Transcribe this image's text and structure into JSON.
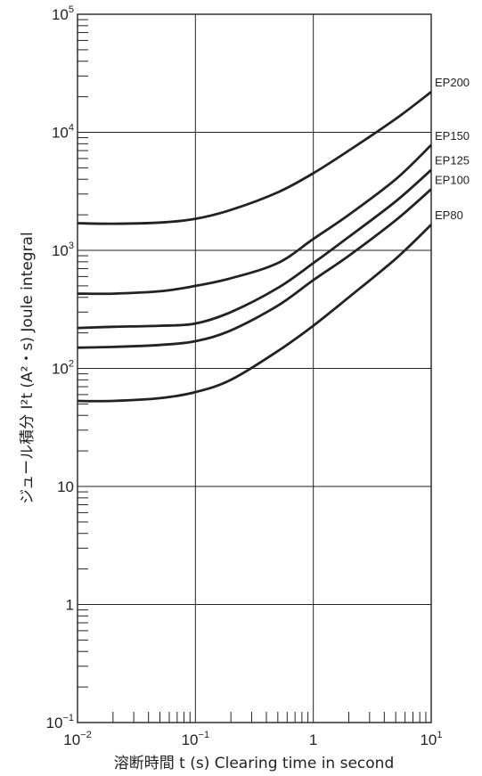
{
  "chart_data": {
    "type": "line",
    "x_scale": "log",
    "y_scale": "log",
    "xlim": [
      0.01,
      10
    ],
    "ylim": [
      0.1,
      100000
    ],
    "grid": "major decades",
    "xlabel": "溶断時間 t (s)  Clearing time in second",
    "ylabel": "ジュール積分 I²t (A²・s)  Joule integral",
    "x_ticks": [
      {
        "value": 0.01,
        "base": "10",
        "exp": "−2"
      },
      {
        "value": 0.1,
        "base": "10",
        "exp": "−1"
      },
      {
        "value": 1,
        "base": "1",
        "exp": ""
      },
      {
        "value": 10,
        "base": "10",
        "exp": "1"
      }
    ],
    "y_ticks": [
      {
        "value": 0.1,
        "base": "10",
        "exp": "−1"
      },
      {
        "value": 1,
        "base": "1",
        "exp": ""
      },
      {
        "value": 10,
        "base": "10",
        "exp": ""
      },
      {
        "value": 100,
        "base": "10",
        "exp": "2"
      },
      {
        "value": 1000,
        "base": "10",
        "exp": "3"
      },
      {
        "value": 10000,
        "base": "10",
        "exp": "4"
      },
      {
        "value": 100000,
        "base": "10",
        "exp": "5"
      }
    ],
    "series": [
      {
        "name": "EP200",
        "x": [
          0.01,
          0.02,
          0.05,
          0.1,
          0.2,
          0.5,
          1,
          2,
          5,
          10
        ],
        "y": [
          1700,
          1680,
          1720,
          1850,
          2200,
          3100,
          4500,
          7000,
          13000,
          22000
        ]
      },
      {
        "name": "EP150",
        "x": [
          0.01,
          0.02,
          0.05,
          0.1,
          0.2,
          0.5,
          1,
          2,
          5,
          10
        ],
        "y": [
          430,
          430,
          450,
          500,
          580,
          780,
          1250,
          2000,
          4000,
          7800
        ]
      },
      {
        "name": "EP125",
        "x": [
          0.01,
          0.02,
          0.05,
          0.1,
          0.2,
          0.5,
          1,
          2,
          5,
          10
        ],
        "y": [
          220,
          225,
          230,
          240,
          300,
          480,
          780,
          1300,
          2600,
          4800
        ]
      },
      {
        "name": "EP100",
        "x": [
          0.01,
          0.02,
          0.05,
          0.1,
          0.2,
          0.5,
          1,
          2,
          5,
          10
        ],
        "y": [
          150,
          152,
          158,
          170,
          210,
          340,
          560,
          900,
          1800,
          3300
        ]
      },
      {
        "name": "EP80",
        "x": [
          0.01,
          0.02,
          0.05,
          0.1,
          0.2,
          0.5,
          1,
          2,
          5,
          10
        ],
        "y": [
          53,
          53,
          56,
          63,
          80,
          140,
          230,
          400,
          850,
          1650
        ]
      }
    ],
    "line_color": "#222222",
    "grid_color": "#222222"
  }
}
